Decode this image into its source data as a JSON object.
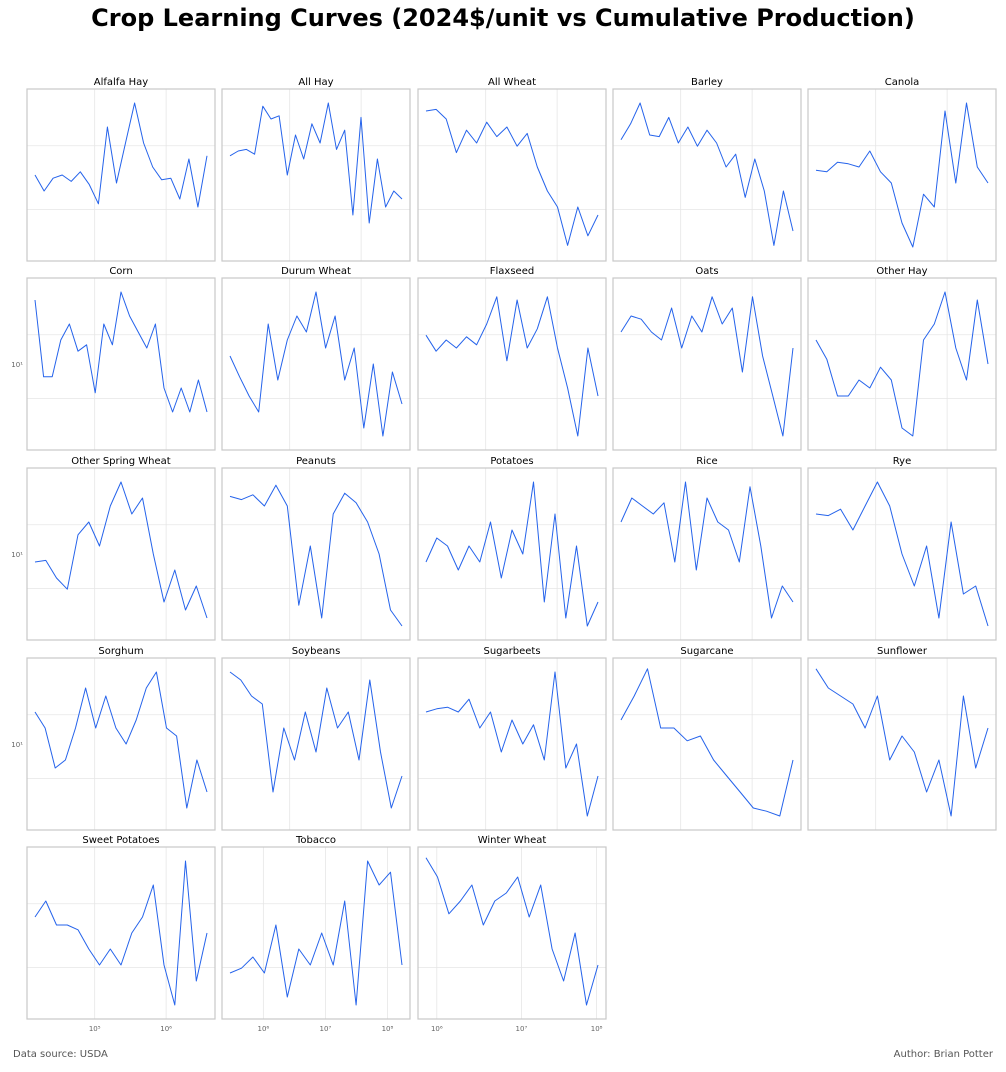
{
  "title": "Crop Learning Curves (2024$/unit vs Cumulative Production)",
  "footer": {
    "source": "Data source: USDA",
    "author": "Author: Brian Potter"
  },
  "colors": {
    "line": "#2563eb",
    "frame": "#c8c8c8",
    "grid": "#e6e6e6",
    "tick": "#666666"
  },
  "chart_data": [
    {
      "type": "line",
      "title": "Alfalfa Hay",
      "x_scale": "log",
      "y_scale": "log",
      "grid": true,
      "series": [
        {
          "y": [
            0.5,
            0.4,
            0.48,
            0.5,
            0.46,
            0.52,
            0.44,
            0.32,
            0.8,
            0.45,
            0.7,
            0.95,
            0.7,
            0.55,
            0.47,
            0.48,
            0.35,
            0.6,
            0.3,
            0.62
          ]
        }
      ]
    },
    {
      "type": "line",
      "title": "All Hay",
      "x_scale": "log",
      "y_scale": "log",
      "grid": true,
      "series": [
        {
          "y": [
            0.62,
            0.65,
            0.66,
            0.63,
            0.93,
            0.85,
            0.87,
            0.5,
            0.75,
            0.6,
            0.82,
            0.7,
            0.95,
            0.66,
            0.78,
            0.25,
            0.86,
            0.2,
            0.6,
            0.3,
            0.4,
            0.35
          ]
        }
      ]
    },
    {
      "type": "line",
      "title": "All Wheat",
      "x_scale": "log",
      "y_scale": "log",
      "grid": true,
      "series": [
        {
          "y": [
            0.9,
            0.91,
            0.85,
            0.64,
            0.78,
            0.7,
            0.83,
            0.74,
            0.8,
            0.68,
            0.76,
            0.55,
            0.4,
            0.3,
            0.06,
            0.3,
            0.12,
            0.25
          ]
        }
      ]
    },
    {
      "type": "line",
      "title": "Barley",
      "x_scale": "log",
      "y_scale": "log",
      "grid": true,
      "series": [
        {
          "y": [
            0.72,
            0.82,
            0.95,
            0.75,
            0.74,
            0.86,
            0.7,
            0.8,
            0.68,
            0.78,
            0.7,
            0.55,
            0.63,
            0.36,
            0.6,
            0.4,
            0.06,
            0.4,
            0.15
          ]
        }
      ]
    },
    {
      "type": "line",
      "title": "Canola",
      "x_scale": "log",
      "y_scale": "log",
      "grid": true,
      "series": [
        {
          "y": [
            0.53,
            0.52,
            0.58,
            0.57,
            0.55,
            0.65,
            0.52,
            0.45,
            0.2,
            0.05,
            0.38,
            0.3,
            0.9,
            0.45,
            0.95,
            0.55,
            0.45
          ]
        }
      ]
    },
    {
      "type": "line",
      "title": "Corn",
      "x_scale": "log",
      "y_scale": "log",
      "grid": true,
      "y_ticks": [
        {
          "value": 10,
          "label": "10¹"
        }
      ],
      "series": [
        {
          "y": [
            0.9,
            0.42,
            0.42,
            0.65,
            0.75,
            0.58,
            0.62,
            0.32,
            0.75,
            0.62,
            0.95,
            0.8,
            0.7,
            0.6,
            0.75,
            0.35,
            0.2,
            0.35,
            0.2,
            0.4,
            0.2
          ]
        }
      ]
    },
    {
      "type": "line",
      "title": "Durum Wheat",
      "x_scale": "log",
      "y_scale": "log",
      "grid": true,
      "series": [
        {
          "y": [
            0.55,
            0.42,
            0.3,
            0.2,
            0.75,
            0.4,
            0.65,
            0.8,
            0.7,
            0.95,
            0.6,
            0.8,
            0.4,
            0.6,
            0.1,
            0.5,
            0.05,
            0.45,
            0.25
          ]
        }
      ]
    },
    {
      "type": "line",
      "title": "Flaxseed",
      "x_scale": "log",
      "y_scale": "log",
      "grid": true,
      "series": [
        {
          "y": [
            0.68,
            0.58,
            0.65,
            0.6,
            0.67,
            0.62,
            0.75,
            0.92,
            0.52,
            0.9,
            0.6,
            0.72,
            0.92,
            0.6,
            0.35,
            0.05,
            0.6,
            0.3
          ]
        }
      ]
    },
    {
      "type": "line",
      "title": "Oats",
      "x_scale": "log",
      "y_scale": "log",
      "grid": true,
      "series": [
        {
          "y": [
            0.7,
            0.8,
            0.78,
            0.7,
            0.65,
            0.85,
            0.6,
            0.8,
            0.7,
            0.92,
            0.75,
            0.85,
            0.45,
            0.92,
            0.55,
            0.3,
            0.05,
            0.6
          ]
        }
      ]
    },
    {
      "type": "line",
      "title": "Other Hay",
      "x_scale": "log",
      "y_scale": "log",
      "grid": true,
      "series": [
        {
          "y": [
            0.65,
            0.53,
            0.3,
            0.3,
            0.4,
            0.35,
            0.48,
            0.4,
            0.1,
            0.05,
            0.65,
            0.75,
            0.95,
            0.6,
            0.4,
            0.9,
            0.5
          ]
        }
      ]
    },
    {
      "type": "line",
      "title": "Other Spring Wheat",
      "x_scale": "log",
      "y_scale": "log",
      "grid": true,
      "y_ticks": [
        {
          "value": 10,
          "label": "10¹"
        }
      ],
      "series": [
        {
          "y": [
            0.45,
            0.46,
            0.35,
            0.28,
            0.62,
            0.7,
            0.55,
            0.8,
            0.95,
            0.75,
            0.85,
            0.5,
            0.2,
            0.4,
            0.15,
            0.3,
            0.1
          ]
        }
      ]
    },
    {
      "type": "line",
      "title": "Peanuts",
      "x_scale": "log",
      "y_scale": "log",
      "grid": true,
      "series": [
        {
          "y": [
            0.86,
            0.84,
            0.87,
            0.8,
            0.93,
            0.8,
            0.18,
            0.55,
            0.1,
            0.75,
            0.88,
            0.82,
            0.7,
            0.5,
            0.15,
            0.05
          ]
        }
      ]
    },
    {
      "type": "line",
      "title": "Potatoes",
      "x_scale": "log",
      "y_scale": "log",
      "grid": true,
      "series": [
        {
          "y": [
            0.45,
            0.6,
            0.55,
            0.4,
            0.55,
            0.45,
            0.7,
            0.35,
            0.65,
            0.5,
            0.95,
            0.2,
            0.75,
            0.1,
            0.55,
            0.05,
            0.2
          ]
        }
      ]
    },
    {
      "type": "line",
      "title": "Rice",
      "x_scale": "log",
      "y_scale": "log",
      "grid": true,
      "series": [
        {
          "y": [
            0.7,
            0.85,
            0.8,
            0.75,
            0.82,
            0.45,
            0.95,
            0.4,
            0.85,
            0.7,
            0.65,
            0.45,
            0.92,
            0.55,
            0.1,
            0.3,
            0.2
          ]
        }
      ]
    },
    {
      "type": "line",
      "title": "Rye",
      "x_scale": "log",
      "y_scale": "log",
      "grid": true,
      "series": [
        {
          "y": [
            0.75,
            0.74,
            0.78,
            0.65,
            0.8,
            0.95,
            0.8,
            0.5,
            0.3,
            0.55,
            0.1,
            0.7,
            0.25,
            0.3,
            0.05
          ]
        }
      ]
    },
    {
      "type": "line",
      "title": "Sorghum",
      "x_scale": "log",
      "y_scale": "log",
      "grid": true,
      "y_ticks": [
        {
          "value": 10,
          "label": "10¹"
        }
      ],
      "series": [
        {
          "y": [
            0.7,
            0.6,
            0.35,
            0.4,
            0.6,
            0.85,
            0.6,
            0.8,
            0.6,
            0.5,
            0.65,
            0.85,
            0.95,
            0.6,
            0.55,
            0.1,
            0.4,
            0.2
          ]
        }
      ]
    },
    {
      "type": "line",
      "title": "Soybeans",
      "x_scale": "log",
      "y_scale": "log",
      "grid": true,
      "series": [
        {
          "y": [
            0.95,
            0.9,
            0.8,
            0.75,
            0.2,
            0.6,
            0.4,
            0.7,
            0.45,
            0.85,
            0.6,
            0.7,
            0.4,
            0.9,
            0.45,
            0.1,
            0.3
          ]
        }
      ]
    },
    {
      "type": "line",
      "title": "Sugarbeets",
      "x_scale": "log",
      "y_scale": "log",
      "grid": true,
      "series": [
        {
          "y": [
            0.7,
            0.72,
            0.73,
            0.7,
            0.78,
            0.6,
            0.7,
            0.45,
            0.65,
            0.5,
            0.62,
            0.4,
            0.95,
            0.35,
            0.5,
            0.05,
            0.3
          ]
        }
      ]
    },
    {
      "type": "line",
      "title": "Sugarcane",
      "x_scale": "log",
      "y_scale": "log",
      "grid": true,
      "series": [
        {
          "y": [
            0.65,
            0.8,
            0.97,
            0.6,
            0.6,
            0.52,
            0.55,
            0.4,
            0.3,
            0.2,
            0.1,
            0.08,
            0.05,
            0.4
          ]
        }
      ]
    },
    {
      "type": "line",
      "title": "Sunflower",
      "x_scale": "log",
      "y_scale": "log",
      "grid": true,
      "series": [
        {
          "y": [
            0.97,
            0.85,
            0.8,
            0.75,
            0.6,
            0.8,
            0.4,
            0.55,
            0.45,
            0.2,
            0.4,
            0.05,
            0.8,
            0.35,
            0.6
          ]
        }
      ]
    },
    {
      "type": "line",
      "title": "Sweet Potatoes",
      "x_scale": "log",
      "y_scale": "log",
      "grid": true,
      "x_ticks": [
        {
          "value": 100000,
          "label": "10⁵"
        },
        {
          "value": 1000000,
          "label": "10⁶"
        }
      ],
      "series": [
        {
          "y": [
            0.6,
            0.7,
            0.55,
            0.55,
            0.52,
            0.4,
            0.3,
            0.4,
            0.3,
            0.5,
            0.6,
            0.8,
            0.3,
            0.05,
            0.95,
            0.2,
            0.5
          ]
        }
      ]
    },
    {
      "type": "line",
      "title": "Tobacco",
      "x_scale": "log",
      "y_scale": "log",
      "grid": true,
      "x_ticks": [
        {
          "value": 1000000,
          "label": "10⁶"
        },
        {
          "value": 10000000,
          "label": "10⁷"
        },
        {
          "value": 100000000,
          "label": "10⁸"
        }
      ],
      "series": [
        {
          "y": [
            0.25,
            0.28,
            0.35,
            0.25,
            0.55,
            0.1,
            0.4,
            0.3,
            0.5,
            0.3,
            0.7,
            0.05,
            0.95,
            0.8,
            0.88,
            0.3
          ]
        }
      ]
    },
    {
      "type": "line",
      "title": "Winter Wheat",
      "x_scale": "log",
      "y_scale": "log",
      "grid": true,
      "x_ticks": [
        {
          "value": 1000000,
          "label": "10⁶"
        },
        {
          "value": 10000000,
          "label": "10⁷"
        },
        {
          "value": 100000000,
          "label": "10⁸"
        }
      ],
      "series": [
        {
          "y": [
            0.97,
            0.85,
            0.62,
            0.7,
            0.8,
            0.55,
            0.7,
            0.75,
            0.85,
            0.6,
            0.8,
            0.4,
            0.2,
            0.5,
            0.05,
            0.3
          ]
        }
      ]
    }
  ]
}
